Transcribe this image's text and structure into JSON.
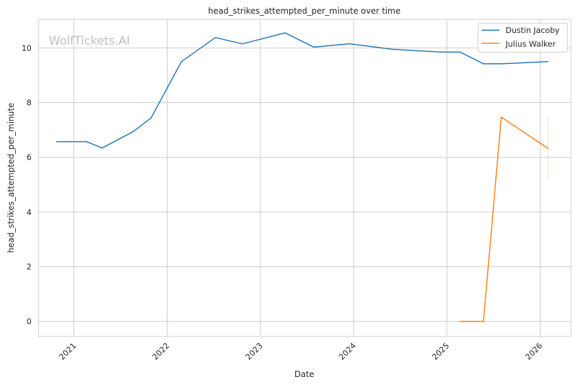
{
  "watermark": "WolfTickets.AI",
  "chart_data": {
    "type": "line",
    "title": "head_strikes_attempted_per_minute over time",
    "xlabel": "Date",
    "ylabel": "head_strikes_attempted_per_minute",
    "xlim": [
      "2020-08-15",
      "2026-05-01"
    ],
    "ylim": [
      -0.55,
      11.05
    ],
    "x_ticks": [
      "2021",
      "2022",
      "2023",
      "2024",
      "2025",
      "2026"
    ],
    "y_ticks": [
      0,
      2,
      4,
      6,
      8,
      10
    ],
    "grid": true,
    "legend_position": "top-right",
    "series": [
      {
        "name": "Dustin Jacoby",
        "color": "#1f77b4",
        "x": [
          "2020-10-25",
          "2021-02-20",
          "2021-04-22",
          "2021-08-21",
          "2021-10-30",
          "2022-02-26",
          "2022-07-09",
          "2022-10-22",
          "2023-04-08",
          "2023-07-29",
          "2023-12-16",
          "2024-06-01",
          "2024-12-07",
          "2025-02-22",
          "2025-05-24",
          "2025-08-02",
          "2026-01-31"
        ],
        "y": [
          6.57,
          6.57,
          6.34,
          6.94,
          7.44,
          9.5,
          10.38,
          10.15,
          10.55,
          10.03,
          10.15,
          9.95,
          9.85,
          9.85,
          9.42,
          9.42,
          9.5
        ]
      },
      {
        "name": "Julius Walker",
        "color": "#ff7f0e",
        "x": [
          "2025-02-22",
          "2025-05-24",
          "2025-08-02",
          "2026-01-31"
        ],
        "y": [
          0,
          0,
          7.47,
          6.33
        ],
        "error_band": {
          "x": "2026-01-31",
          "low": 5.16,
          "high": 7.47
        }
      }
    ]
  }
}
